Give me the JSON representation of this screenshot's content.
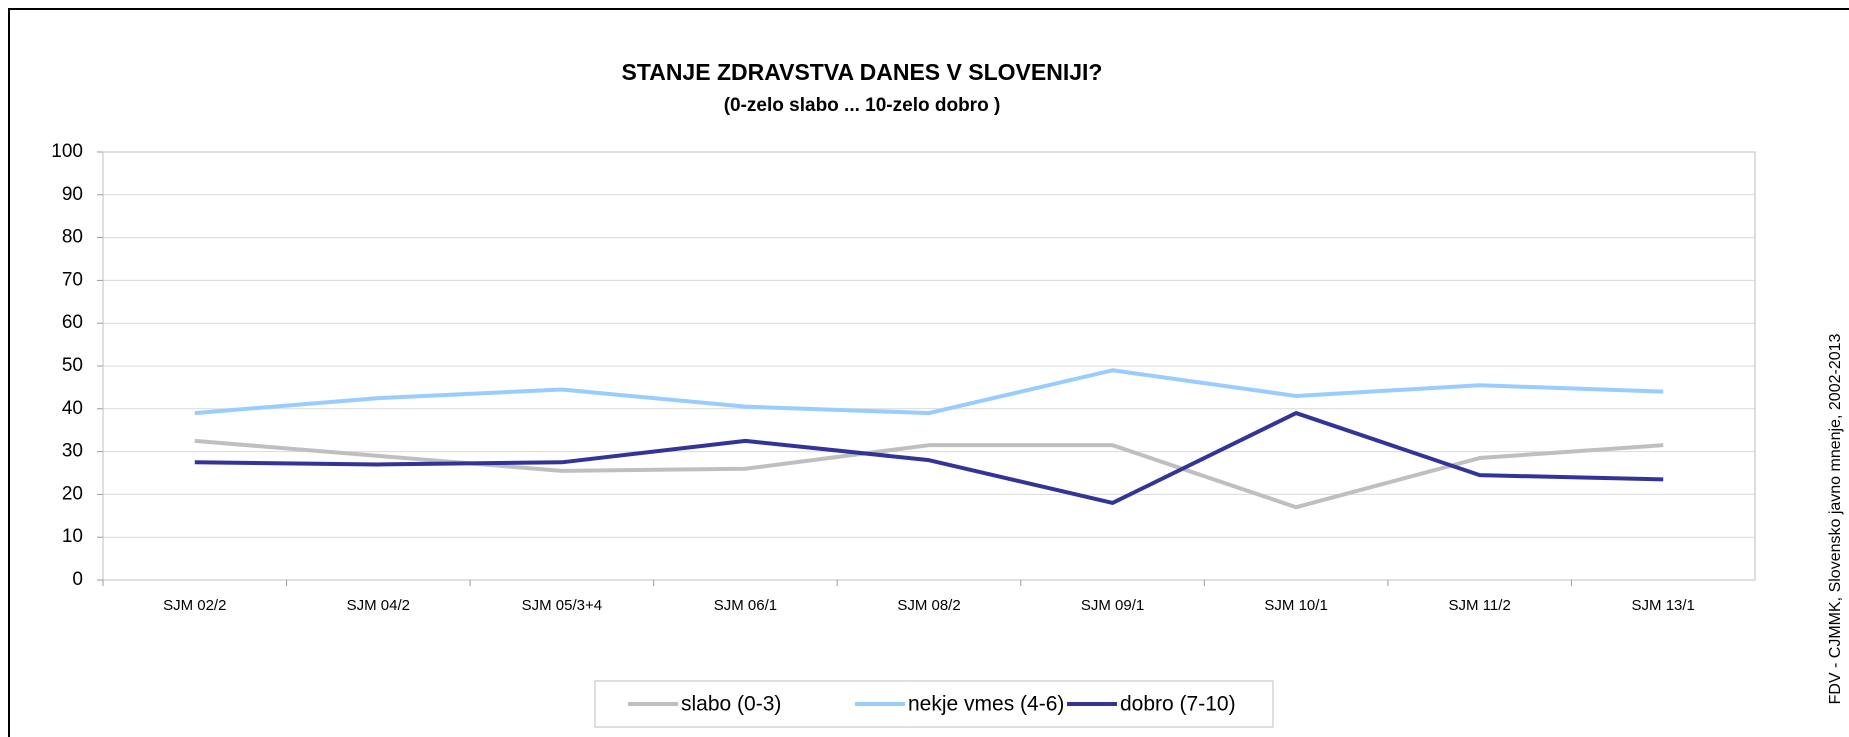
{
  "chart_data": {
    "type": "line",
    "title": "STANJE ZDRAVSTVA DANES V SLOVENIJI?",
    "subtitle": "(0-zelo slabo  ... 10-zelo dobro )",
    "source": "FDV - CJMMK, Slovensko javno mnenje, 2002-2013",
    "categories": [
      "SJM 02/2",
      "SJM 04/2",
      "SJM 05/3+4",
      "SJM 06/1",
      "SJM 08/2",
      "SJM 09/1",
      "SJM 10/1",
      "SJM 11/2",
      "SJM 13/1"
    ],
    "series": [
      {
        "name": "slabo (0-3)",
        "color": "#bfbfbf",
        "values": [
          32.5,
          29,
          25.5,
          26,
          31.5,
          31.5,
          17,
          28.5,
          31.5
        ]
      },
      {
        "name": "nekje vmes (4-6)",
        "color": "#99ccff",
        "values": [
          39,
          42.5,
          44.5,
          40.5,
          39,
          49,
          43,
          45.5,
          44
        ]
      },
      {
        "name": "dobro (7-10)",
        "color": "#333399",
        "values": [
          27.5,
          27,
          27.5,
          32.5,
          28,
          18,
          39,
          24.5,
          23.5
        ]
      }
    ],
    "ylim": [
      0,
      100
    ],
    "yticks": [
      0,
      10,
      20,
      30,
      40,
      50,
      60,
      70,
      80,
      90,
      100
    ],
    "grid": true,
    "legend": "bottom"
  }
}
